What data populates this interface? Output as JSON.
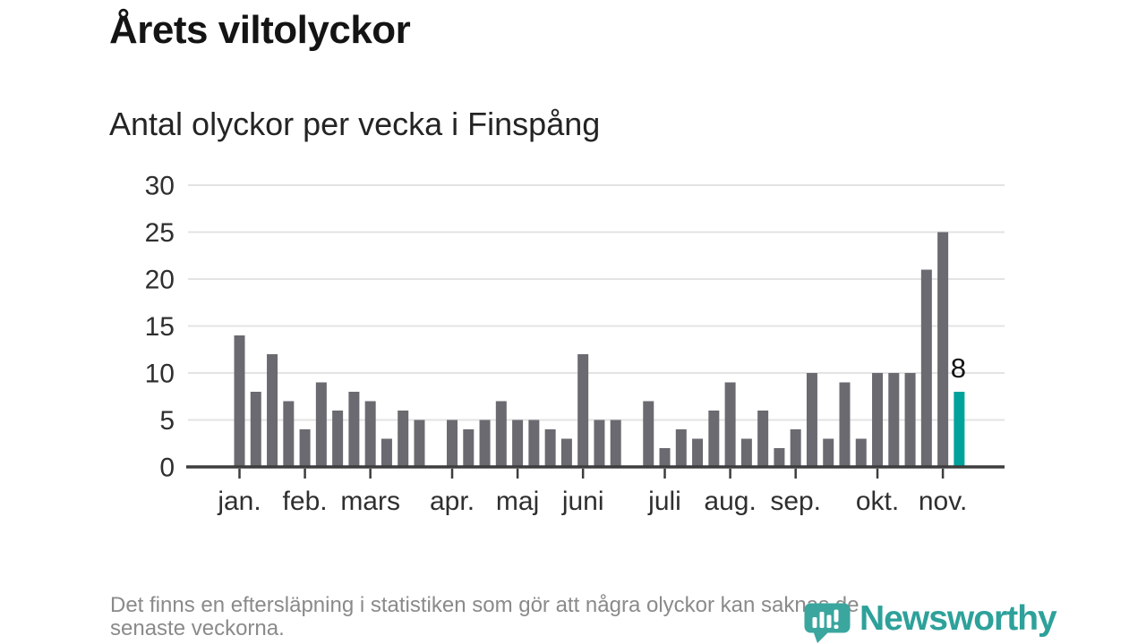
{
  "header": {
    "title": "Årets viltolyckor",
    "subtitle": "Antal olyckor per vecka i Finspång"
  },
  "chart_data": {
    "type": "bar",
    "title": "Årets viltolyckor",
    "subtitle": "Antal olyckor per vecka i Finspång",
    "x_unit": "vecka",
    "ylim": [
      0,
      30
    ],
    "yticks": [
      0,
      5,
      10,
      15,
      20,
      25,
      30
    ],
    "grid": true,
    "legend": "none",
    "weekly_values": [
      14,
      8,
      12,
      7,
      4,
      9,
      6,
      8,
      7,
      3,
      6,
      5,
      0,
      5,
      4,
      5,
      7,
      5,
      5,
      4,
      3,
      12,
      5,
      5,
      0,
      7,
      2,
      4,
      3,
      6,
      9,
      3,
      6,
      2,
      4,
      10,
      3,
      9,
      3,
      10,
      10,
      10,
      21,
      25,
      8
    ],
    "month_ticks": [
      {
        "label": "jan.",
        "week": 1
      },
      {
        "label": "feb.",
        "week": 5
      },
      {
        "label": "mars",
        "week": 9
      },
      {
        "label": "apr.",
        "week": 14
      },
      {
        "label": "maj",
        "week": 18
      },
      {
        "label": "juni",
        "week": 22
      },
      {
        "label": "juli",
        "week": 27
      },
      {
        "label": "aug.",
        "week": 31
      },
      {
        "label": "sep.",
        "week": 35
      },
      {
        "label": "okt.",
        "week": 40
      },
      {
        "label": "nov.",
        "week": 44
      }
    ],
    "highlight": {
      "index": 44,
      "label": "8"
    },
    "colors": {
      "bar": "#6a6a70",
      "highlight": "#00a29b",
      "grid": "#e3e3e3",
      "axis": "#3d3d3d",
      "label_text": "#2f2f2f",
      "value_label": "#141414"
    }
  },
  "footer": {
    "note_lines": [
      "Det finns en eftersläpning i statistiken som gör att några olyckor kan saknas de",
      "senaste veckorna."
    ]
  },
  "logo": {
    "wordmark": "Newsworthy",
    "icon": "speech-bubble-bar-chart-icon",
    "wordmark_color": "#2da19a",
    "icon_color": "#3aa69e"
  }
}
